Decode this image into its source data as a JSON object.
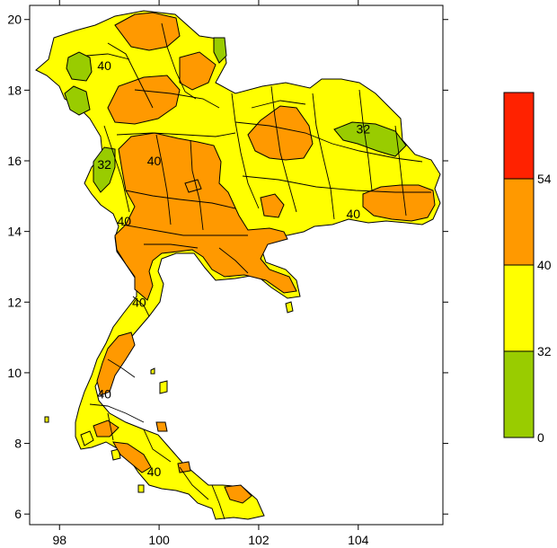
{
  "map": {
    "axes": {
      "x_ticks": [
        "98",
        "100",
        "102",
        "104"
      ],
      "y_ticks": [
        "6",
        "8",
        "10",
        "12",
        "14",
        "16",
        "18",
        "20"
      ],
      "x_range": [
        97.4,
        105.7
      ],
      "y_range": [
        5.7,
        20.4
      ]
    },
    "contour_labels": [
      {
        "text": "40",
        "lon": 99.9,
        "lat": 16.0
      },
      {
        "text": "40",
        "lon": 99.3,
        "lat": 14.3
      },
      {
        "text": "40",
        "lon": 99.6,
        "lat": 12.0
      },
      {
        "text": "40",
        "lon": 98.9,
        "lat": 9.4
      },
      {
        "text": "40",
        "lon": 99.9,
        "lat": 7.2
      },
      {
        "text": "40",
        "lon": 103.9,
        "lat": 14.5
      },
      {
        "text": "40",
        "lon": 98.9,
        "lat": 18.7
      },
      {
        "text": "32",
        "lon": 104.1,
        "lat": 16.9
      },
      {
        "text": "32",
        "lon": 98.9,
        "lat": 15.9
      }
    ]
  },
  "colorbar": {
    "bins": [
      {
        "color": "#ff2200"
      },
      {
        "color": "#ff9900"
      },
      {
        "color": "#ffff00"
      },
      {
        "color": "#99cc00"
      }
    ],
    "labels": [
      "54",
      "40",
      "32",
      "0"
    ]
  },
  "colors": {
    "green": "#99cc00",
    "yellow": "#ffff00",
    "orange": "#ff9900",
    "red": "#ff2200",
    "outline": "#000000"
  }
}
